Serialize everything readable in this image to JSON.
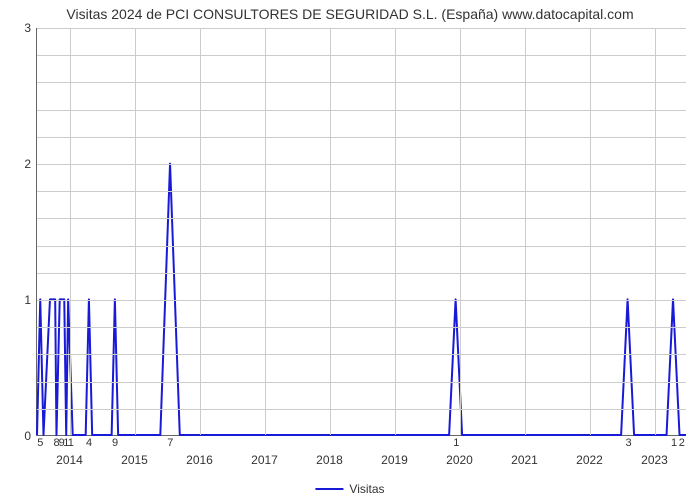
{
  "title": "Visitas 2024 de PCI CONSULTORES DE SEGURIDAD S.L. (España) www.datocapital.com",
  "chart": {
    "type": "line",
    "background_color": "#ffffff",
    "grid_color": "#cccccc",
    "axis_color": "#666666",
    "text_color": "#333333",
    "title_fontsize": 14,
    "tick_fontsize": 12,
    "legend_fontsize": 12,
    "ylim": [
      0,
      3
    ],
    "yticks": [
      0,
      1,
      2,
      3
    ],
    "yminor_count": 5,
    "x_year_ticks": [
      2014,
      2015,
      2016,
      2017,
      2018,
      2019,
      2020,
      2021,
      2022,
      2023
    ],
    "x_year_tick_range": [
      2014,
      2023.5
    ],
    "x_small_labels": [
      {
        "x": 2013.55,
        "t": "5"
      },
      {
        "x": 2013.8,
        "t": "8"
      },
      {
        "x": 2013.88,
        "t": "9"
      },
      {
        "x": 2013.95,
        "t": "1"
      },
      {
        "x": 2014.02,
        "t": "1"
      },
      {
        "x": 2014.3,
        "t": "4"
      },
      {
        "x": 2014.7,
        "t": "9"
      },
      {
        "x": 2015.55,
        "t": "7"
      },
      {
        "x": 2019.95,
        "t": "1"
      },
      {
        "x": 2022.6,
        "t": "3"
      },
      {
        "x": 2023.3,
        "t": "1"
      },
      {
        "x": 2023.42,
        "t": "2"
      }
    ],
    "series": {
      "name": "Visitas",
      "color": "#1919d8",
      "stroke_width": 2,
      "data": [
        {
          "x": 2013.5,
          "y": 0
        },
        {
          "x": 2013.55,
          "y": 1
        },
        {
          "x": 2013.6,
          "y": 0
        },
        {
          "x": 2013.7,
          "y": 1
        },
        {
          "x": 2013.78,
          "y": 1
        },
        {
          "x": 2013.8,
          "y": 0
        },
        {
          "x": 2013.85,
          "y": 1
        },
        {
          "x": 2013.92,
          "y": 1
        },
        {
          "x": 2013.95,
          "y": 0
        },
        {
          "x": 2013.98,
          "y": 1
        },
        {
          "x": 2014.05,
          "y": 0
        },
        {
          "x": 2014.25,
          "y": 0
        },
        {
          "x": 2014.3,
          "y": 1
        },
        {
          "x": 2014.35,
          "y": 0
        },
        {
          "x": 2014.65,
          "y": 0
        },
        {
          "x": 2014.7,
          "y": 1
        },
        {
          "x": 2014.75,
          "y": 0
        },
        {
          "x": 2015.4,
          "y": 0
        },
        {
          "x": 2015.55,
          "y": 2
        },
        {
          "x": 2015.7,
          "y": 0
        },
        {
          "x": 2019.85,
          "y": 0
        },
        {
          "x": 2019.95,
          "y": 1
        },
        {
          "x": 2020.05,
          "y": 0
        },
        {
          "x": 2022.5,
          "y": 0
        },
        {
          "x": 2022.6,
          "y": 1
        },
        {
          "x": 2022.7,
          "y": 0
        },
        {
          "x": 2023.2,
          "y": 0
        },
        {
          "x": 2023.3,
          "y": 1
        },
        {
          "x": 2023.4,
          "y": 0
        },
        {
          "x": 2023.5,
          "y": 0
        }
      ],
      "x_domain": [
        2013.5,
        2023.5
      ]
    },
    "legend": {
      "label": "Visitas"
    }
  }
}
